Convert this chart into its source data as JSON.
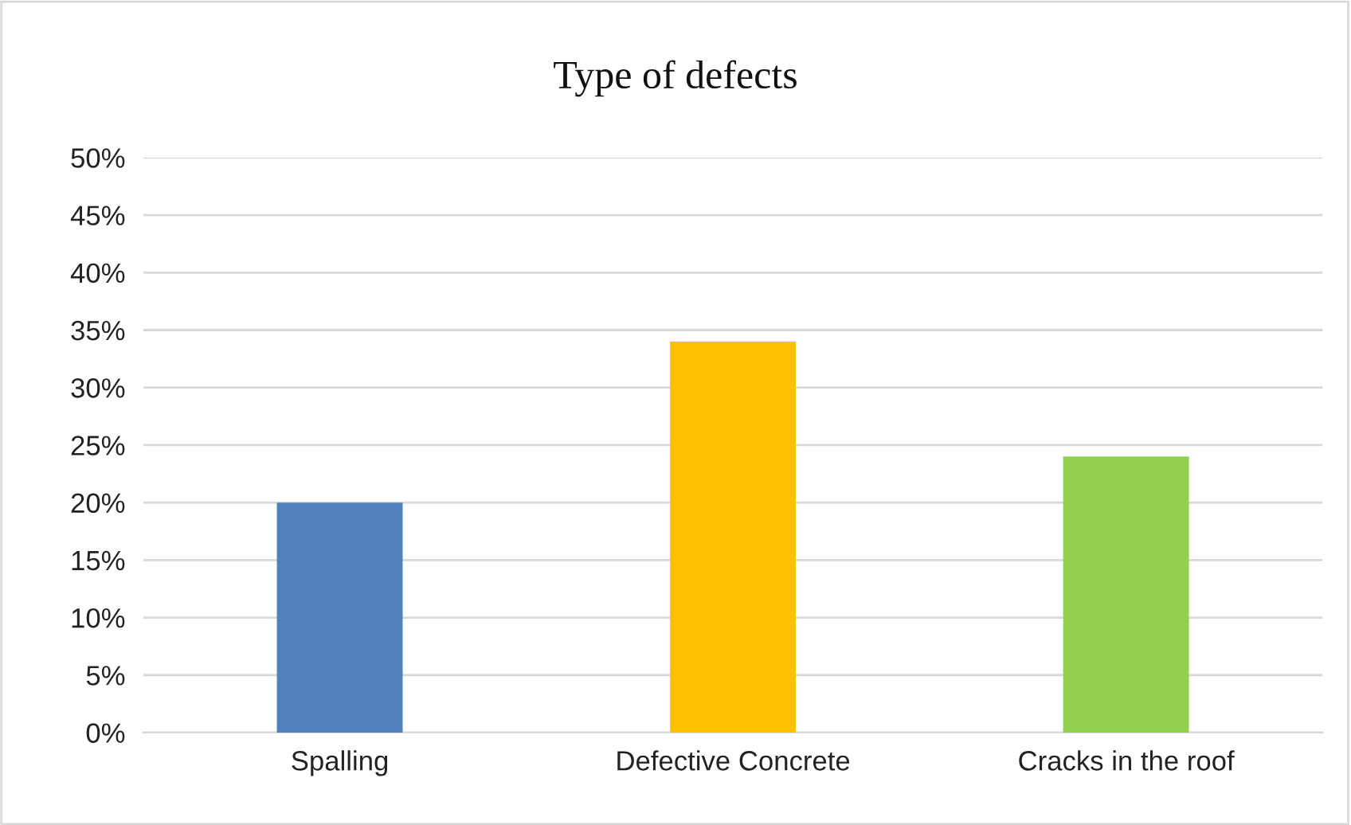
{
  "chart_data": {
    "type": "bar",
    "title": "Type of defects",
    "categories": [
      "Spalling",
      "Defective Concrete",
      "Cracks in the roof"
    ],
    "values": [
      20,
      34,
      24
    ],
    "colors": [
      "#4f81bd",
      "#ffc000",
      "#92d050"
    ],
    "ylim": [
      0,
      50
    ],
    "yticks": [
      {
        "value": 0,
        "label": "0%"
      },
      {
        "value": 5,
        "label": "5%"
      },
      {
        "value": 10,
        "label": "10%"
      },
      {
        "value": 15,
        "label": "15%"
      },
      {
        "value": 20,
        "label": "20%"
      },
      {
        "value": 25,
        "label": "25%"
      },
      {
        "value": 30,
        "label": "30%"
      },
      {
        "value": 35,
        "label": "35%"
      },
      {
        "value": 40,
        "label": "40%"
      },
      {
        "value": 45,
        "label": "45%"
      },
      {
        "value": 50,
        "label": "50%"
      }
    ],
    "grid": "y",
    "legend": false
  }
}
